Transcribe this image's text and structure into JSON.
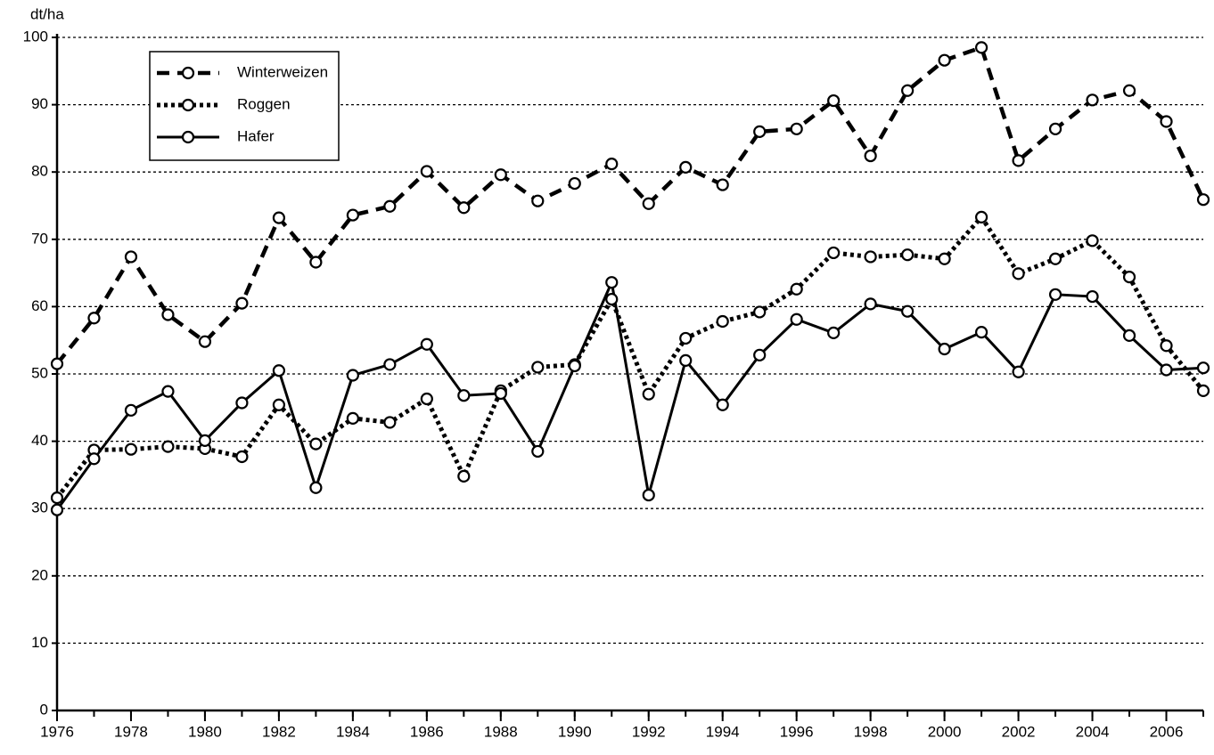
{
  "chart_data": {
    "type": "line",
    "y_label": "dt/ha",
    "x": [
      1976,
      1977,
      1978,
      1979,
      1980,
      1981,
      1982,
      1983,
      1984,
      1985,
      1986,
      1987,
      1988,
      1989,
      1990,
      1991,
      1992,
      1993,
      1994,
      1995,
      1996,
      1997,
      1998,
      1999,
      2000,
      2001,
      2002,
      2003,
      2004,
      2005,
      2006,
      2007
    ],
    "series": [
      {
        "name": "Winterweizen",
        "color": "#000000",
        "style": "dashed",
        "values": [
          51.5,
          58.3,
          67.4,
          58.8,
          54.8,
          60.5,
          73.2,
          66.6,
          73.6,
          74.9,
          80.1,
          74.7,
          79.6,
          75.7,
          78.3,
          81.2,
          75.3,
          80.7,
          78.1,
          86.0,
          86.4,
          90.6,
          82.4,
          92.1,
          96.6,
          98.5,
          81.7,
          86.4,
          90.7,
          92.1,
          87.5,
          75.9
        ]
      },
      {
        "name": "Roggen",
        "color": "#000000",
        "style": "dotted",
        "values": [
          31.6,
          38.7,
          38.8,
          39.2,
          38.9,
          37.7,
          45.4,
          39.6,
          43.4,
          42.8,
          46.3,
          34.8,
          47.5,
          51.0,
          51.4,
          61.1,
          47.0,
          55.3,
          57.8,
          59.2,
          62.6,
          68.0,
          67.4,
          67.7,
          67.1,
          73.3,
          64.9,
          67.1,
          69.8,
          64.4,
          54.2,
          47.5
        ]
      },
      {
        "name": "Hafer",
        "color": "#000000",
        "style": "solid",
        "values": [
          29.8,
          37.4,
          44.6,
          47.4,
          40.1,
          45.7,
          50.5,
          33.1,
          49.8,
          51.4,
          54.4,
          46.8,
          47.1,
          38.5,
          51.2,
          63.6,
          32.0,
          52.0,
          45.4,
          52.8,
          58.1,
          56.1,
          60.4,
          59.3,
          53.7,
          56.2,
          50.3,
          61.8,
          61.5,
          55.7,
          50.6,
          50.9
        ]
      }
    ],
    "xlim": [
      1976,
      2007
    ],
    "xticks": [
      1976,
      1978,
      1980,
      1982,
      1984,
      1986,
      1988,
      1990,
      1992,
      1994,
      1996,
      1998,
      2000,
      2002,
      2004,
      2006
    ],
    "ylim": [
      0,
      100
    ],
    "yticks": [
      0,
      10,
      20,
      30,
      40,
      50,
      60,
      70,
      80,
      90,
      100
    ],
    "grid": true,
    "legend": "upper-left"
  }
}
